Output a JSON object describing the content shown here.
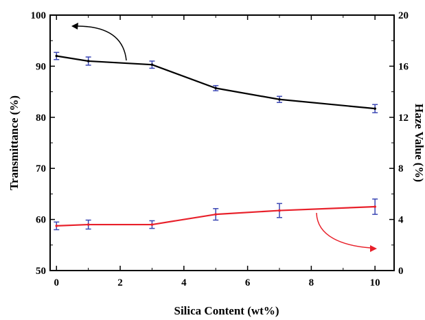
{
  "chart_data": {
    "type": "line",
    "title": "",
    "xlabel": "Silica Content (wt%)",
    "ylabel_left": "Transmittance (%)",
    "ylabel_right": "Haze Value (%)",
    "xlim": [
      -0.2,
      10.6
    ],
    "ylim_left": [
      50,
      100
    ],
    "ylim_right": [
      0,
      20
    ],
    "x_ticks": [
      "0",
      "2",
      "4",
      "6",
      "8",
      "10"
    ],
    "y_left_ticks": [
      "50",
      "60",
      "70",
      "80",
      "90",
      "100"
    ],
    "y_right_ticks": [
      "0",
      "4",
      "8",
      "12",
      "16",
      "20"
    ],
    "grid": false,
    "series": [
      {
        "axis": "left",
        "color": "#000000",
        "x": [
          0,
          1,
          3,
          5,
          7,
          10
        ],
        "y": [
          92.0,
          91.0,
          90.3,
          85.7,
          83.5,
          81.7
        ],
        "err": [
          0.7,
          0.8,
          0.7,
          0.5,
          0.6,
          0.8
        ]
      },
      {
        "axis": "right",
        "color": "#e8202a",
        "x": [
          0,
          1,
          3,
          5,
          7,
          10
        ],
        "y": [
          3.5,
          3.6,
          3.6,
          4.4,
          4.7,
          5.0
        ],
        "err": [
          0.3,
          0.35,
          0.3,
          0.45,
          0.55,
          0.6
        ]
      }
    ],
    "errorbar_color": "#3b47b4",
    "annotations": [
      {
        "type": "arrow",
        "color": "#000000",
        "points_to": "left-axis"
      },
      {
        "type": "arrow",
        "color": "#e8202a",
        "points_to": "right-axis"
      }
    ]
  }
}
